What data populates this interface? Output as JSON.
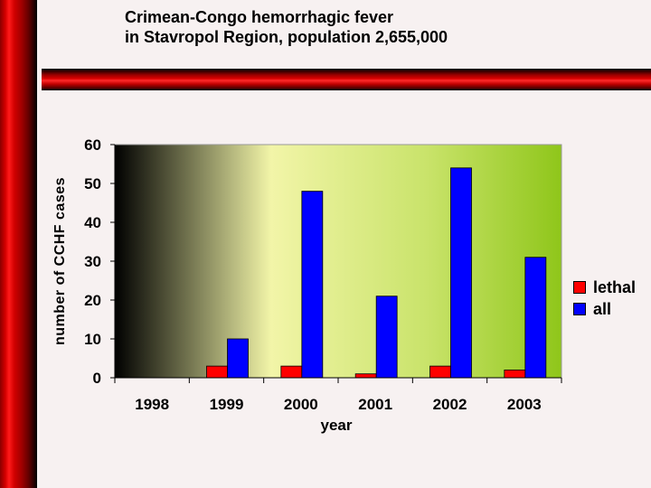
{
  "slide": {
    "title_line1": "Crimean-Congo hemorrhagic fever",
    "title_line2": "in Stavropol Region, population 2,655,000"
  },
  "chart_data": {
    "type": "bar",
    "categories": [
      "1998",
      "1999",
      "2000",
      "2001",
      "2002",
      "2003"
    ],
    "series": [
      {
        "name": "lethal",
        "values": [
          0,
          3,
          3,
          1,
          3,
          2
        ],
        "color": "#ff0000"
      },
      {
        "name": "all",
        "values": [
          0,
          10,
          48,
          21,
          54,
          31
        ],
        "color": "#0000ff"
      }
    ],
    "xlabel": "year",
    "ylabel": "number of CCHF cases",
    "ylim": [
      0,
      60
    ],
    "yticks": [
      0,
      10,
      20,
      30,
      40,
      50,
      60
    ],
    "grid": false,
    "legend_position": "right",
    "plot_background": "gradient light-yellow to green"
  }
}
